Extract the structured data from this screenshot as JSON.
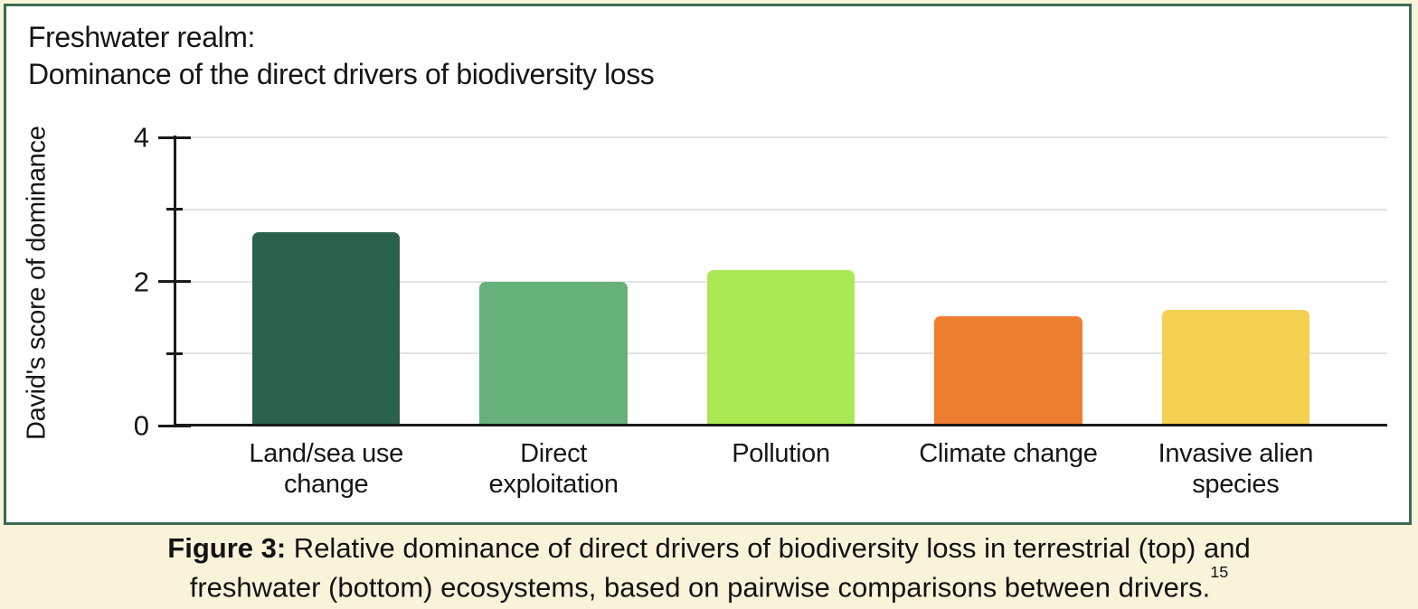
{
  "panel": {
    "title_lines": [
      "Freshwater realm:",
      "Dominance of the direct drivers of biodiversity loss"
    ]
  },
  "chart_data": {
    "type": "bar",
    "title": "Freshwater realm: Dominance of the direct drivers of biodiversity loss",
    "ylabel": "David's score of dominance",
    "xlabel": "",
    "categories": [
      "Land/sea use\nchange",
      "Direct\nexploitation",
      "Pollution",
      "Climate change",
      "Invasive alien\nspecies"
    ],
    "values": [
      2.68,
      2.0,
      2.16,
      1.52,
      1.61
    ],
    "bar_colors": [
      "#2b624c",
      "#66b17a",
      "#abe954",
      "#ed7d2f",
      "#f5d152"
    ],
    "ylim": [
      0,
      4
    ],
    "yticks": [
      0,
      1,
      2,
      3,
      4
    ],
    "ytick_labels": [
      "0",
      "",
      "2",
      "",
      "4"
    ],
    "grid": true,
    "legend": false
  },
  "caption": {
    "label": "Figure 3:",
    "line1_rest": " Relative dominance of direct drivers of biodiversity loss in terrestrial (top) and",
    "line2": "freshwater (bottom) ecosystems, based on pairwise comparisons between drivers.",
    "footnote_ref": "15"
  },
  "colors": {
    "page_bg": "#f9f3da",
    "panel_bg": "#ffffff",
    "panel_border": "#3b6a51",
    "axis": "#191919",
    "gridline": "#e4e4e4",
    "text": "#161616"
  }
}
